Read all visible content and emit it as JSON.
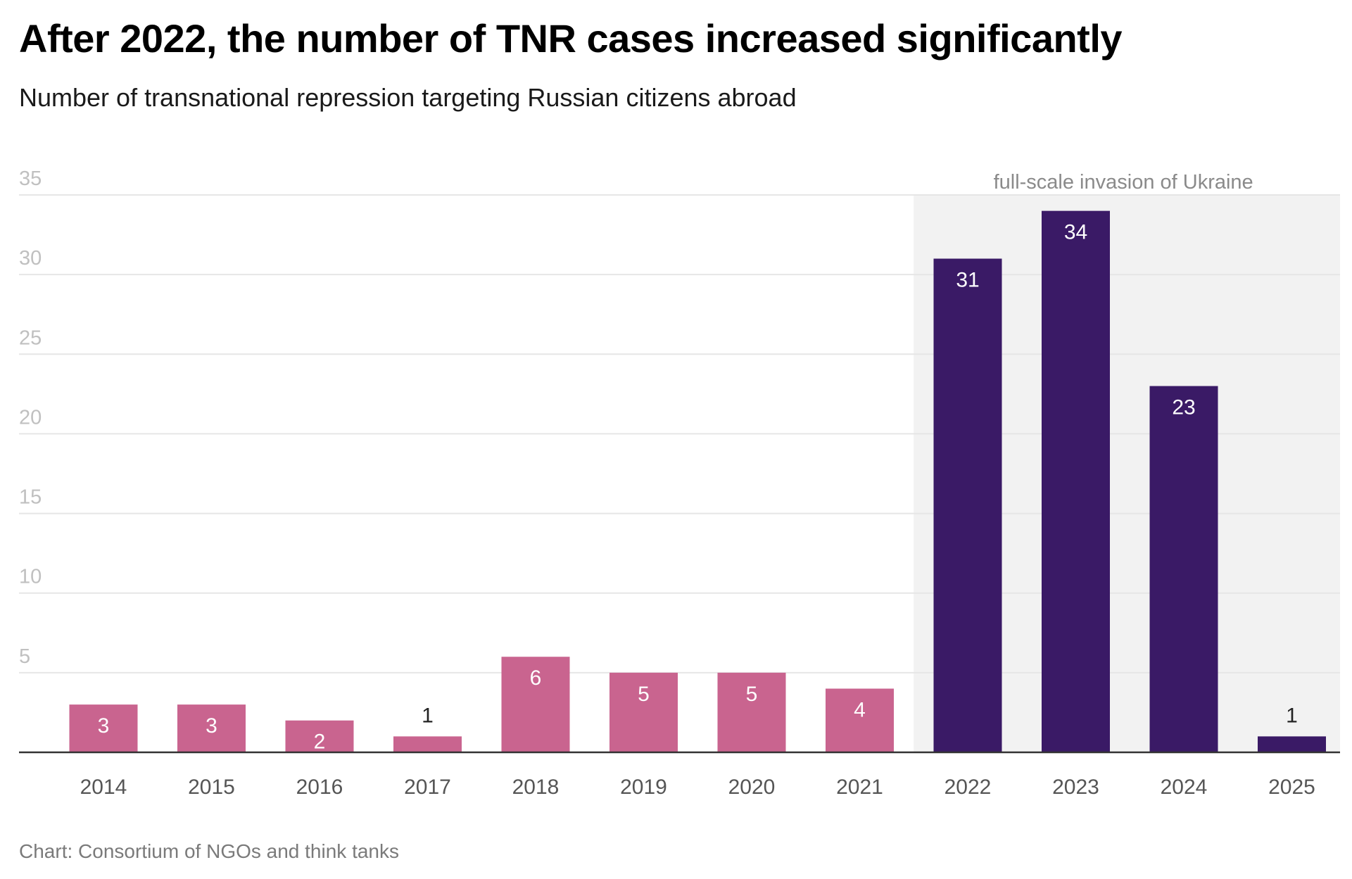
{
  "header": {
    "title": "After 2022, the number of TNR cases increased significantly",
    "subtitle": "Number of transnational repression targeting Russian citizens abroad"
  },
  "footer": {
    "source": "Chart: Consortium of NGOs and think tanks"
  },
  "chart_data": {
    "type": "bar",
    "title": "After 2022, the number of TNR cases increased significantly",
    "subtitle": "Number of transnational repression targeting Russian citizens abroad",
    "xlabel": "",
    "ylabel": "",
    "categories": [
      "2014",
      "2015",
      "2016",
      "2017",
      "2018",
      "2019",
      "2020",
      "2021",
      "2022",
      "2023",
      "2024",
      "2025"
    ],
    "values": [
      3,
      3,
      2,
      1,
      6,
      5,
      5,
      4,
      31,
      34,
      23,
      1
    ],
    "ylim": [
      0,
      35
    ],
    "yticks": [
      5,
      10,
      15,
      20,
      25,
      30,
      35
    ],
    "grid": true,
    "highlight": {
      "label": "full-scale invasion of Ukraine",
      "from_category": "2022",
      "to_category": "2025"
    },
    "colors": {
      "pre_invasion": "#c9648f",
      "post_invasion": "#3a1a66",
      "highlight_band": "#f2f2f2",
      "grid": "#e6e6e6",
      "axis": "#333333",
      "tick_text": "#c0c0c0",
      "category_text": "#555555",
      "annotation_text": "#8a8a8a"
    }
  }
}
